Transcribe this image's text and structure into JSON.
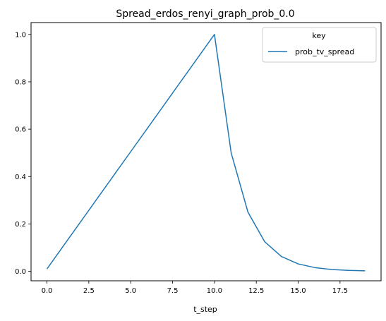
{
  "chart_data": {
    "type": "line",
    "title": "Spread_erdos_renyi_graph_prob_0.0",
    "xlabel": "t_step",
    "ylabel": "",
    "xlim": [
      -0.95,
      19.95
    ],
    "ylim": [
      -0.04,
      1.05
    ],
    "x_ticks": [
      0.0,
      2.5,
      5.0,
      7.5,
      10.0,
      12.5,
      15.0,
      17.5
    ],
    "x_tick_labels": [
      "0.0",
      "2.5",
      "5.0",
      "7.5",
      "10.0",
      "12.5",
      "15.0",
      "17.5"
    ],
    "y_ticks": [
      0.0,
      0.2,
      0.4,
      0.6,
      0.8,
      1.0
    ],
    "y_tick_labels": [
      "0.0",
      "0.2",
      "0.4",
      "0.6",
      "0.8",
      "1.0"
    ],
    "grid": false,
    "legend": {
      "title": "key",
      "placement": "top-right"
    },
    "series": [
      {
        "name": "prob_tv_spread",
        "color": "#1f77b4",
        "x": [
          0,
          1,
          2,
          3,
          4,
          5,
          6,
          7,
          8,
          9,
          10,
          11,
          12,
          13,
          14,
          15,
          16,
          17,
          18,
          19
        ],
        "y": [
          0.01,
          0.109,
          0.208,
          0.307,
          0.406,
          0.505,
          0.604,
          0.703,
          0.802,
          0.901,
          1.0,
          0.5,
          0.25,
          0.125,
          0.0625,
          0.0313,
          0.0156,
          0.0078,
          0.0039,
          0.002
        ]
      }
    ]
  }
}
